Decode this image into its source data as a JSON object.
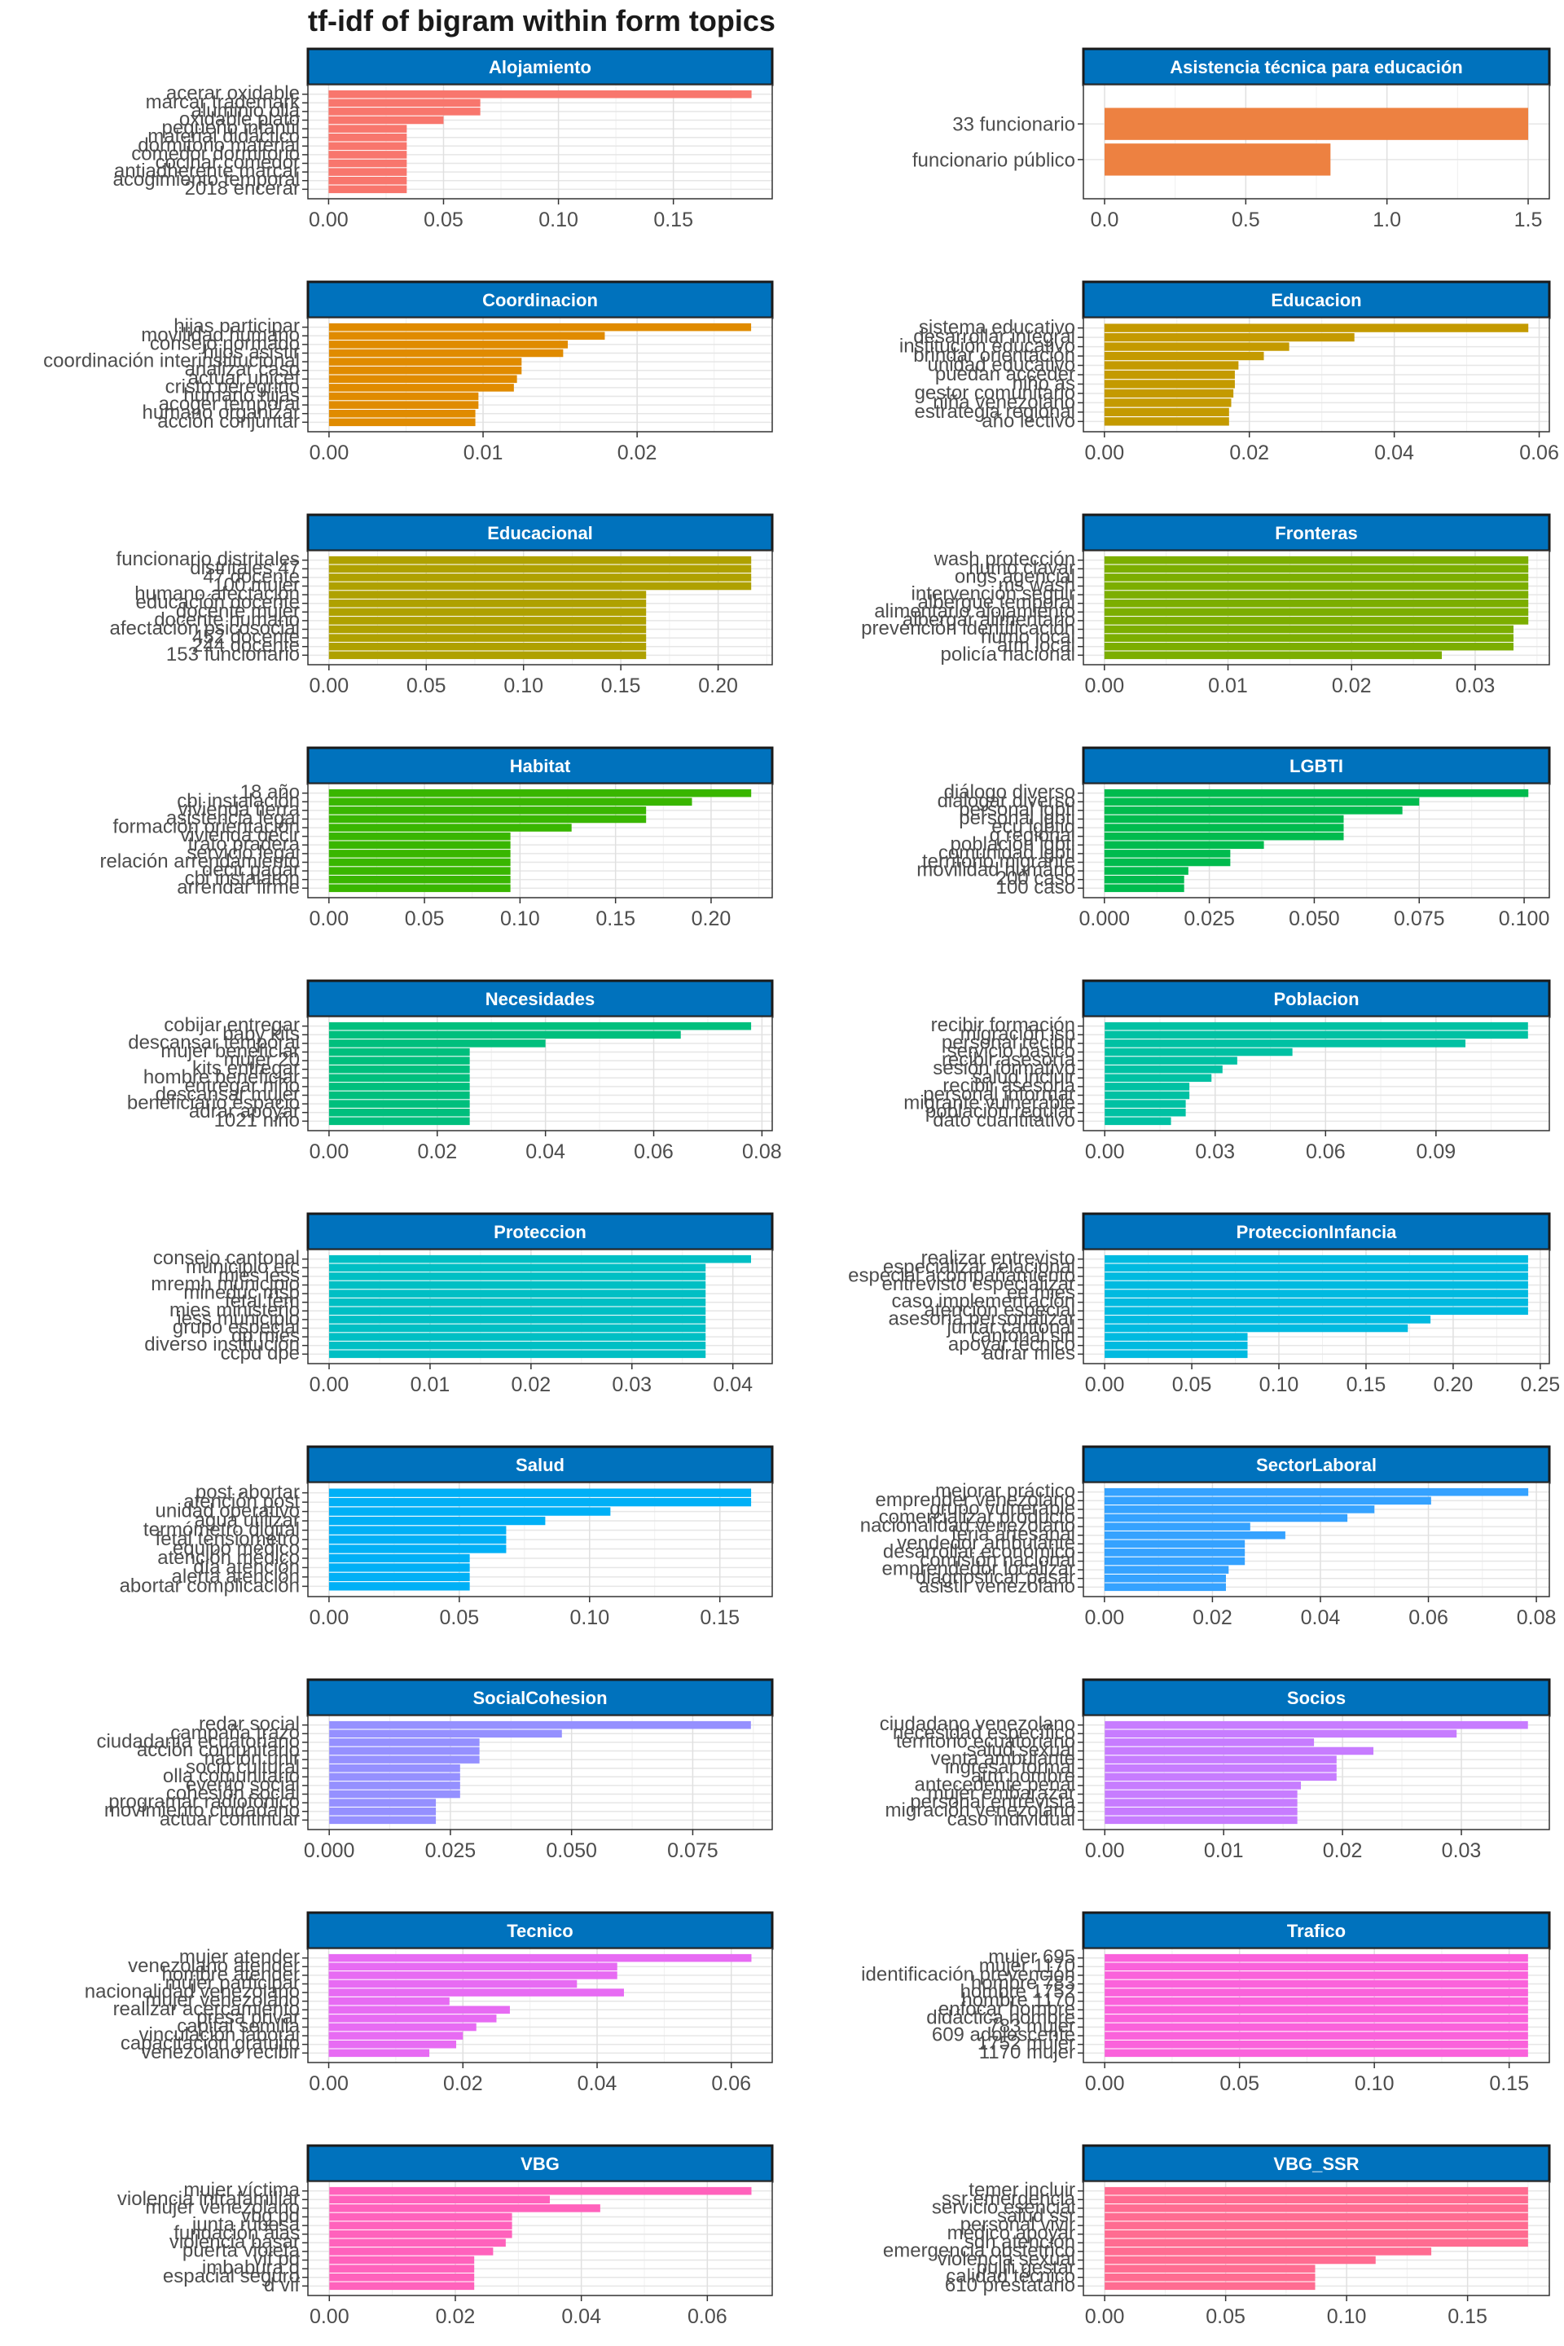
{
  "title": "tf-idf of bigram within form topics",
  "chart_data": [
    {
      "type": "bar",
      "orientation": "horizontal",
      "facet": "Alojamiento",
      "color": "#F8766D",
      "categories": [
        "acerar oxidable",
        "marcar trademark",
        "aluminio olla",
        "oxidable plato",
        "pequeño infantil",
        "material didáctico",
        "dormitorio material",
        "comedor dormitorio",
        "cocinar comedor",
        "antiadherente marcar",
        "acogimiento temporal",
        "2018 encerar"
      ],
      "values": [
        0.184,
        0.066,
        0.066,
        0.05,
        0.034,
        0.034,
        0.034,
        0.034,
        0.034,
        0.034,
        0.034,
        0.034
      ],
      "xticks": [
        0,
        0.05,
        0.1,
        0.15
      ],
      "xtick_labels": [
        "0.00",
        "0.05",
        "0.10",
        "0.15"
      ],
      "xlim": [
        -0.009,
        0.193
      ]
    },
    {
      "type": "bar",
      "orientation": "horizontal",
      "facet": "Asistencia técnica para educación",
      "color": "#ED8141",
      "categories": [
        "33 funcionario",
        "funcionario público"
      ],
      "values": [
        1.5,
        0.8
      ],
      "xticks": [
        0,
        0.5,
        1.0,
        1.5
      ],
      "xtick_labels": [
        "0.0",
        "0.5",
        "1.0",
        "1.5"
      ],
      "xlim": [
        -0.075,
        1.575
      ]
    },
    {
      "type": "bar",
      "orientation": "horizontal",
      "facet": "Coordinacion",
      "color": "#E08B00",
      "categories": [
        "hijas participar",
        "movilidad humano",
        "consejo normado",
        "hijos asistir",
        "coordinación interinstitucional",
        "analizar caso",
        "actuar unicef",
        "cristo peregrino",
        "humano hijas",
        "acoger temporal",
        "humano organizar",
        "acción conjuntar"
      ],
      "values": [
        0.0274,
        0.0179,
        0.0155,
        0.0152,
        0.0125,
        0.0125,
        0.0122,
        0.012,
        0.0097,
        0.0097,
        0.0095,
        0.0095
      ],
      "xticks": [
        0,
        0.01,
        0.02
      ],
      "xtick_labels": [
        "0.00",
        "0.01",
        "0.02"
      ],
      "xlim": [
        -0.00137,
        0.02877
      ]
    },
    {
      "type": "bar",
      "orientation": "horizontal",
      "facet": "Educacion",
      "color": "#C49A00",
      "categories": [
        "sistema educativo",
        "desarrollar integral",
        "institución educativo",
        "brindar orientación",
        "unidad educativo",
        "puedan acceder",
        "niño as",
        "gestor comunitario",
        "niña venezolano",
        "estrategia regional",
        "año lectivo"
      ],
      "values": [
        0.0585,
        0.0345,
        0.0255,
        0.022,
        0.0185,
        0.018,
        0.018,
        0.0178,
        0.0175,
        0.0172,
        0.0172
      ],
      "xticks": [
        0,
        0.02,
        0.04,
        0.06
      ],
      "xtick_labels": [
        "0.00",
        "0.02",
        "0.04",
        "0.06"
      ],
      "xlim": [
        -0.0029,
        0.0614
      ]
    },
    {
      "type": "bar",
      "orientation": "horizontal",
      "facet": "Educacional",
      "color": "#AFA100",
      "categories": [
        "funcionario distritales",
        "distritales 47",
        "47 docente",
        "100 mujer",
        "humano afectación",
        "educación docente",
        "docente mujer",
        "docente humano",
        "afectación psicosocial",
        "452 docente",
        "244 docente",
        "153 funcionario"
      ],
      "values": [
        0.217,
        0.217,
        0.217,
        0.217,
        0.163,
        0.163,
        0.163,
        0.163,
        0.163,
        0.163,
        0.163,
        0.163
      ],
      "xticks": [
        0,
        0.05,
        0.1,
        0.15,
        0.2
      ],
      "xtick_labels": [
        "0.00",
        "0.05",
        "0.10",
        "0.15",
        "0.20"
      ],
      "xlim": [
        -0.0108,
        0.2278
      ]
    },
    {
      "type": "bar",
      "orientation": "horizontal",
      "facet": "Fronteras",
      "color": "#7CAE00",
      "categories": [
        "wash protección",
        "humo clavar",
        "ongs agencial",
        "ms wash",
        "intervención seguir",
        "albergue temporal",
        "alimentario alojamiento",
        "albergar alimentario",
        "prevención identificación",
        "humo local",
        "atm local",
        "policía nacional"
      ],
      "values": [
        0.0343,
        0.0343,
        0.0343,
        0.0343,
        0.0343,
        0.0343,
        0.0343,
        0.0343,
        0.0331,
        0.0331,
        0.0331,
        0.0273
      ],
      "xticks": [
        0,
        0.01,
        0.02,
        0.03
      ],
      "xtick_labels": [
        "0.00",
        "0.01",
        "0.02",
        "0.03"
      ],
      "xlim": [
        -0.0017,
        0.036
      ]
    },
    {
      "type": "bar",
      "orientation": "horizontal",
      "facet": "Habitat",
      "color": "#39B600",
      "categories": [
        "18 año",
        "cbi instalación",
        "vivienda tierra",
        "asistencia legal",
        "formación orientación",
        "vivienda decir",
        "trato pradera",
        "servicio legal",
        "relación arrendamiento",
        "decir pagar",
        "cbi instalaron",
        "arrendar firme"
      ],
      "values": [
        0.221,
        0.19,
        0.166,
        0.166,
        0.127,
        0.095,
        0.095,
        0.095,
        0.095,
        0.095,
        0.095,
        0.095
      ],
      "xticks": [
        0,
        0.05,
        0.1,
        0.15,
        0.2
      ],
      "xtick_labels": [
        "0.00",
        "0.05",
        "0.10",
        "0.15",
        "0.20"
      ],
      "xlim": [
        -0.011,
        0.232
      ]
    },
    {
      "type": "bar",
      "orientation": "horizontal",
      "facet": "LGBTI",
      "color": "#00BB4E",
      "categories": [
        "diálogo diverso",
        "dialogar diverso",
        "personal lgbti",
        "personal igbti",
        "ecu lgbtiq",
        "q regional",
        "población lgbti",
        "comunidad lgbti",
        "territorio migrante",
        "movilidad humano",
        "200 caso",
        "100 caso"
      ],
      "values": [
        0.101,
        0.075,
        0.071,
        0.057,
        0.057,
        0.057,
        0.038,
        0.03,
        0.03,
        0.02,
        0.019,
        0.019
      ],
      "xticks": [
        0,
        0.025,
        0.05,
        0.075,
        0.1
      ],
      "xtick_labels": [
        "0.000",
        "0.025",
        "0.050",
        "0.075",
        "0.100"
      ],
      "xlim": [
        -0.005,
        0.106
      ]
    },
    {
      "type": "bar",
      "orientation": "horizontal",
      "facet": "Necesidades",
      "color": "#00BF7D",
      "categories": [
        "cobijar entregar",
        "baby kits",
        "descansar temporal",
        "mujer beneficiar",
        "mujer 20",
        "kits entregar",
        "hombre beneficiar",
        "entregar niño",
        "descansar mujer",
        "beneficiario espacio",
        "adrar apoyar",
        "1021 niño"
      ],
      "values": [
        0.078,
        0.065,
        0.04,
        0.026,
        0.026,
        0.026,
        0.026,
        0.026,
        0.026,
        0.026,
        0.026,
        0.026
      ],
      "xticks": [
        0,
        0.02,
        0.04,
        0.06,
        0.08
      ],
      "xtick_labels": [
        "0.00",
        "0.02",
        "0.04",
        "0.06",
        "0.08"
      ],
      "xlim": [
        -0.0039,
        0.0819
      ]
    },
    {
      "type": "bar",
      "orientation": "horizontal",
      "facet": "Poblacion",
      "color": "#00C1A3",
      "categories": [
        "recibir formación",
        "migración isp",
        "personal recibir",
        "servicio básico",
        "recibir asesoría",
        "sesión formativo",
        "salud incluir",
        "recibir asesoria",
        "personal informar",
        "migrante vulnerable",
        "población regular",
        "dato cuantitativo"
      ],
      "values": [
        0.115,
        0.115,
        0.098,
        0.051,
        0.036,
        0.032,
        0.029,
        0.023,
        0.023,
        0.022,
        0.022,
        0.018
      ],
      "xticks": [
        0,
        0.03,
        0.06,
        0.09
      ],
      "xtick_labels": [
        "0.00",
        "0.03",
        "0.06",
        "0.09"
      ],
      "xlim": [
        -0.0058,
        0.1208
      ]
    },
    {
      "type": "bar",
      "orientation": "horizontal",
      "facet": "Proteccion",
      "color": "#00BFC4",
      "categories": [
        "consejo cantonal",
        "municipio etc",
        "mies iess",
        "mremh municipio",
        "mineduc msp",
        "fetal fem",
        "mies ministerio",
        "iess municipio",
        "grupo especial",
        "dp mies",
        "diverso institución",
        "ccpd dpe"
      ],
      "values": [
        0.0418,
        0.0373,
        0.0373,
        0.0373,
        0.0373,
        0.0373,
        0.0373,
        0.0373,
        0.0373,
        0.0373,
        0.0373,
        0.0373
      ],
      "xticks": [
        0,
        0.01,
        0.02,
        0.03,
        0.04
      ],
      "xtick_labels": [
        "0.00",
        "0.01",
        "0.02",
        "0.03",
        "0.04"
      ],
      "xlim": [
        -0.0021,
        0.0439
      ]
    },
    {
      "type": "bar",
      "orientation": "horizontal",
      "facet": "ProteccionInfancia",
      "color": "#00BAE0",
      "categories": [
        "realizar entrevisto",
        "especializar relacional",
        "especial acompañamiento",
        "entrevisto especializar",
        "ee mies",
        "caso implementación",
        "atención especial",
        "asesoría personalizar",
        "juntar cantonal",
        "cantonal sin",
        "apoyar técnico",
        "adrar mies"
      ],
      "values": [
        0.243,
        0.243,
        0.243,
        0.243,
        0.243,
        0.243,
        0.243,
        0.187,
        0.174,
        0.082,
        0.082,
        0.082
      ],
      "xticks": [
        0,
        0.05,
        0.1,
        0.15,
        0.2,
        0.25
      ],
      "xtick_labels": [
        "0.00",
        "0.05",
        "0.10",
        "0.15",
        "0.20",
        "0.25"
      ],
      "xlim": [
        -0.0122,
        0.2552
      ]
    },
    {
      "type": "bar",
      "orientation": "horizontal",
      "facet": "Salud",
      "color": "#00B0F6",
      "categories": [
        "post abortar",
        "atención post",
        "unidad operativo",
        "agua utilizar",
        "termómetro digital",
        "fetal tensiometro",
        "equipo médico",
        "atención médico",
        "día atención",
        "alerta atención",
        "abortar complicación"
      ],
      "values": [
        0.162,
        0.162,
        0.108,
        0.083,
        0.068,
        0.068,
        0.068,
        0.054,
        0.054,
        0.054,
        0.054
      ],
      "xticks": [
        0,
        0.05,
        0.1,
        0.15
      ],
      "xtick_labels": [
        "0.00",
        "0.05",
        "0.10",
        "0.15"
      ],
      "xlim": [
        -0.0081,
        0.1701
      ]
    },
    {
      "type": "bar",
      "orientation": "horizontal",
      "facet": "SectorLaboral",
      "color": "#35A2FF",
      "categories": [
        "mejorar práctico",
        "emprender venezolano",
        "grupo vulnerable",
        "comercializar producto",
        "nacionalidad venezolano",
        "feria artesanal",
        "vendedor ambulante",
        "desarrollar económico",
        "comisión nacional",
        "emprendedor localizar",
        "diagnosticar pasar",
        "asistir venezolano"
      ],
      "values": [
        0.0785,
        0.0605,
        0.05,
        0.045,
        0.027,
        0.0335,
        0.026,
        0.026,
        0.026,
        0.023,
        0.0225,
        0.0225
      ],
      "xticks": [
        0,
        0.02,
        0.04,
        0.06,
        0.08
      ],
      "xtick_labels": [
        "0.00",
        "0.02",
        "0.04",
        "0.06",
        "0.08"
      ],
      "xlim": [
        -0.0039,
        0.0824
      ]
    },
    {
      "type": "bar",
      "orientation": "horizontal",
      "facet": "SocialCohesion",
      "color": "#9590FF",
      "categories": [
        "redar social",
        "campaña trazo",
        "ciudadanía ecuatoriano",
        "acción comunitario",
        "nación unir",
        "socio cultural",
        "olla comunitario",
        "evento social",
        "cohesión social",
        "programar radiofónico",
        "movimiento ciudadano",
        "actuar continuar"
      ],
      "values": [
        0.087,
        0.048,
        0.031,
        0.031,
        0.031,
        0.027,
        0.027,
        0.027,
        0.027,
        0.022,
        0.022,
        0.022
      ],
      "xticks": [
        0,
        0.025,
        0.05,
        0.075
      ],
      "xtick_labels": [
        "0.000",
        "0.025",
        "0.050",
        "0.075"
      ],
      "xlim": [
        -0.0044,
        0.0914
      ]
    },
    {
      "type": "bar",
      "orientation": "horizontal",
      "facet": "Socios",
      "color": "#C77CFF",
      "categories": [
        "ciudadano venezolano",
        "necesidad específico",
        "territorio ecuatoriano",
        "salud sexual",
        "venta ambulante",
        "ingresar formal",
        "atm hombre",
        "antecedente penal",
        "mujer embarazar",
        "personal entrevista",
        "migración venezolano",
        "caso individual"
      ],
      "values": [
        0.0356,
        0.0296,
        0.0176,
        0.0226,
        0.0195,
        0.0195,
        0.0195,
        0.0165,
        0.0162,
        0.0162,
        0.0162,
        0.0162
      ],
      "xticks": [
        0,
        0.01,
        0.02,
        0.03
      ],
      "xtick_labels": [
        "0.00",
        "0.01",
        "0.02",
        "0.03"
      ],
      "xlim": [
        -0.0018,
        0.0374
      ]
    },
    {
      "type": "bar",
      "orientation": "horizontal",
      "facet": "Tecnico",
      "color": "#E76BF3",
      "categories": [
        "mujer atender",
        "venezolano atender",
        "hombre atender",
        "mujer participar",
        "nacionalidad venezolano",
        "mujer venezolano",
        "realizar acercamiento",
        "presa privar",
        "capital semilla",
        "vinculación laboral",
        "capacitación gratuito",
        "venezolano recibir"
      ],
      "values": [
        0.063,
        0.043,
        0.043,
        0.037,
        0.044,
        0.018,
        0.027,
        0.025,
        0.022,
        0.02,
        0.019,
        0.015
      ],
      "xticks": [
        0,
        0.02,
        0.04,
        0.06
      ],
      "xtick_labels": [
        "0.00",
        "0.02",
        "0.04",
        "0.06"
      ],
      "xlim": [
        -0.0031,
        0.0661
      ]
    },
    {
      "type": "bar",
      "orientation": "horizontal",
      "facet": "Trafico",
      "color": "#FA62DB",
      "categories": [
        "mujer 695",
        "mujer 1170",
        "identificación prevención",
        "hombre 783",
        "hombre 1752",
        "hombre 1170",
        "enfocar hombre",
        "didáctica hombre",
        "783 mujer",
        "609 adolescente",
        "1752 mujer",
        "1170 mujer"
      ],
      "values": [
        0.157,
        0.157,
        0.157,
        0.157,
        0.157,
        0.157,
        0.157,
        0.157,
        0.157,
        0.157,
        0.157,
        0.157
      ],
      "xticks": [
        0,
        0.05,
        0.1,
        0.15
      ],
      "xtick_labels": [
        "0.00",
        "0.05",
        "0.10",
        "0.15"
      ],
      "xlim": [
        -0.0079,
        0.1649
      ]
    },
    {
      "type": "bar",
      "orientation": "horizontal",
      "facet": "VBG",
      "color": "#FF62BC",
      "categories": [
        "mujer víctima",
        "violencia intrafamiliar",
        "mujer venezolano",
        "vbg pd",
        "junta rubesa",
        "fundación alas",
        "violencia basar",
        "puerta violeta",
        "vif pd",
        "imbabura q",
        "espacial seguro",
        "d vif"
      ],
      "values": [
        0.067,
        0.035,
        0.043,
        0.029,
        0.029,
        0.029,
        0.028,
        0.026,
        0.023,
        0.023,
        0.023,
        0.023
      ],
      "xticks": [
        0,
        0.02,
        0.04,
        0.06
      ],
      "xtick_labels": [
        "0.00",
        "0.02",
        "0.04",
        "0.06"
      ],
      "xlim": [
        -0.0034,
        0.0703
      ]
    },
    {
      "type": "bar",
      "orientation": "horizontal",
      "facet": "VBG_SSR",
      "color": "#FF6C91",
      "categories": [
        "temer incluir",
        "ssr emergencia",
        "servicio esencial",
        "salud ssr",
        "personal vivir",
        "médico apoyar",
        "sdh atención",
        "emergencia obstetrico",
        "violencia sexual",
        "pujili gestar",
        "calidad técnico",
        "610 prestatario"
      ],
      "values": [
        0.175,
        0.175,
        0.175,
        0.175,
        0.175,
        0.175,
        0.175,
        0.135,
        0.112,
        0.087,
        0.087,
        0.087
      ],
      "xticks": [
        0,
        0.05,
        0.1,
        0.15
      ],
      "xtick_labels": [
        "0.00",
        "0.05",
        "0.10",
        "0.15"
      ],
      "xlim": [
        -0.0088,
        0.1838
      ]
    }
  ]
}
